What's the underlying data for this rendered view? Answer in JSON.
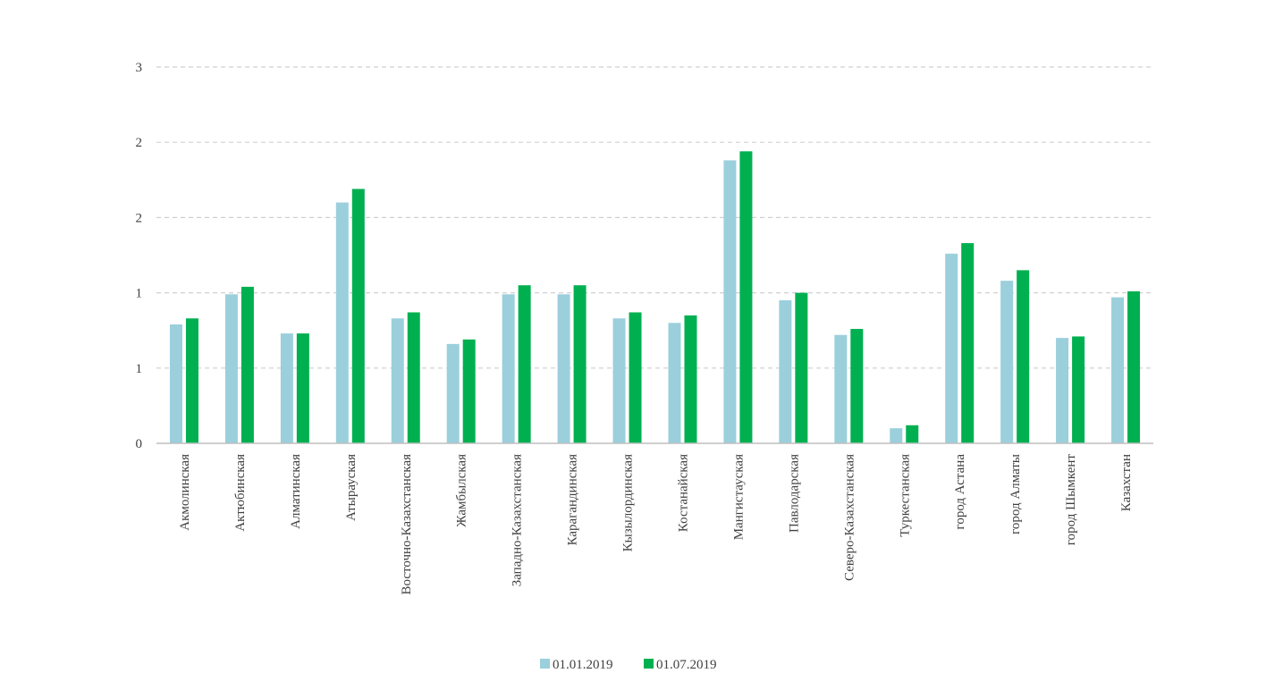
{
  "chart_data": {
    "type": "bar",
    "title": "",
    "xlabel": "",
    "ylabel": "",
    "ylim": [
      0,
      2.5
    ],
    "yticks": [
      0,
      0.5,
      1,
      1.5,
      2,
      2.5
    ],
    "ytick_labels": [
      "0",
      "1",
      "1",
      "2",
      "2",
      "3"
    ],
    "grid": true,
    "legend_position": "bottom",
    "colors": {
      "series1": "#9bcfdc",
      "series2": "#00b050",
      "grid": "#d0d0d0",
      "axis": "#bfbfbf"
    },
    "categories": [
      "Акмолинская",
      "Актюбинская",
      "Алматинская",
      "Атырауская",
      "Восточно-Казахстанская",
      "Жамбылская",
      "Западно-Казахстанская",
      "Карагандинская",
      "Кызылординская",
      "Костанайская",
      "Мангистауская",
      "Павлодарская",
      "Северо-Казахстанская",
      "Туркестанская",
      "город Астана",
      "город Алматы",
      "город Шымкент",
      "Казахстан"
    ],
    "series": [
      {
        "name": "01.01.2019",
        "values": [
          0.79,
          0.99,
          0.73,
          1.6,
          0.83,
          0.66,
          0.99,
          0.99,
          0.83,
          0.8,
          1.88,
          0.95,
          0.72,
          0.1,
          1.26,
          1.08,
          0.7,
          0.97
        ]
      },
      {
        "name": "01.07.2019",
        "values": [
          0.83,
          1.04,
          0.73,
          1.69,
          0.87,
          0.69,
          1.05,
          1.05,
          0.87,
          0.85,
          1.94,
          1.0,
          0.76,
          0.12,
          1.33,
          1.15,
          0.71,
          1.01
        ]
      }
    ]
  }
}
